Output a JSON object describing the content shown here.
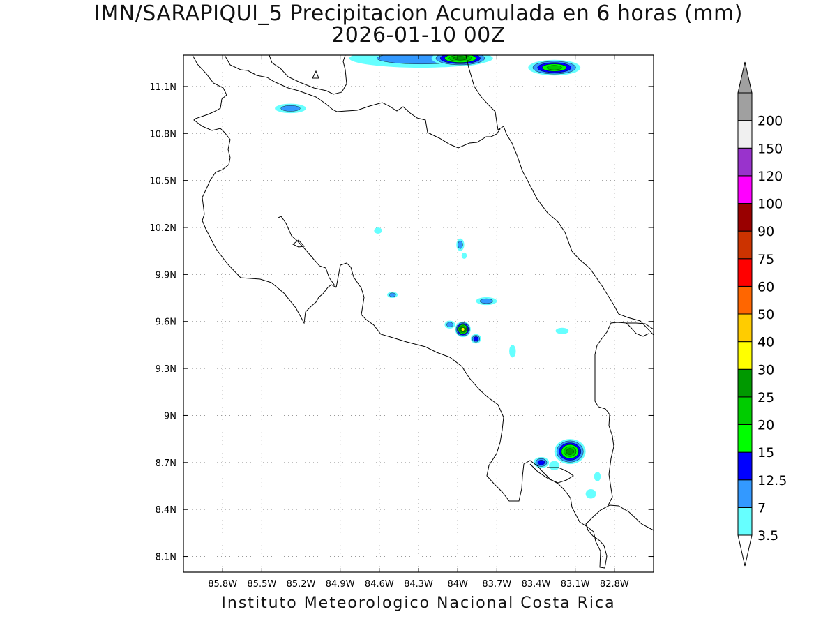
{
  "title": {
    "line1": "IMN/SARAPIQUI_5 Precipitacion Acumulada en 6 horas (mm)",
    "line2": "2026-01-10 00Z"
  },
  "footer": "Instituto Meteorologico Nacional Costa Rica",
  "map": {
    "lon_range": [
      -86.1,
      -82.5
    ],
    "lat_range": [
      8.0,
      11.3
    ],
    "lon_ticks": [
      {
        "value": -85.8,
        "label": "85.8W"
      },
      {
        "value": -85.5,
        "label": "85.5W"
      },
      {
        "value": -85.2,
        "label": "85.2W"
      },
      {
        "value": -84.9,
        "label": "84.9W"
      },
      {
        "value": -84.6,
        "label": "84.6W"
      },
      {
        "value": -84.3,
        "label": "84.3W"
      },
      {
        "value": -84.0,
        "label": "84W"
      },
      {
        "value": -83.7,
        "label": "83.7W"
      },
      {
        "value": -83.4,
        "label": "83.4W"
      },
      {
        "value": -83.1,
        "label": "83.1W"
      },
      {
        "value": -82.8,
        "label": "82.8W"
      }
    ],
    "lat_ticks": [
      {
        "value": 11.1,
        "label": "11.1N"
      },
      {
        "value": 10.8,
        "label": "10.8N"
      },
      {
        "value": 10.5,
        "label": "10.5N"
      },
      {
        "value": 10.2,
        "label": "10.2N"
      },
      {
        "value": 9.9,
        "label": "9.9N"
      },
      {
        "value": 9.6,
        "label": "9.6N"
      },
      {
        "value": 9.3,
        "label": "9.3N"
      },
      {
        "value": 9.0,
        "label": "9N"
      },
      {
        "value": 8.7,
        "label": "8.7N"
      },
      {
        "value": 8.4,
        "label": "8.4N"
      },
      {
        "value": 8.1,
        "label": "8.1N"
      }
    ],
    "grid": true
  },
  "colorbar": {
    "levels": [
      {
        "label": "3.5",
        "color": "#66ffff"
      },
      {
        "label": "7",
        "color": "#3399ff"
      },
      {
        "label": "12.5",
        "color": "#0000ff"
      },
      {
        "label": "15",
        "color": "#00ff00"
      },
      {
        "label": "20",
        "color": "#00cc00"
      },
      {
        "label": "25",
        "color": "#009900"
      },
      {
        "label": "30",
        "color": "#ffff00"
      },
      {
        "label": "40",
        "color": "#ffcc00"
      },
      {
        "label": "50",
        "color": "#ff6600"
      },
      {
        "label": "60",
        "color": "#ff0000"
      },
      {
        "label": "75",
        "color": "#cc3300"
      },
      {
        "label": "90",
        "color": "#990000"
      },
      {
        "label": "100",
        "color": "#ff00ff"
      },
      {
        "label": "120",
        "color": "#9933cc"
      },
      {
        "label": "150",
        "color": "#f0f0f0"
      },
      {
        "label": "200",
        "color": "#a0a0a0"
      }
    ],
    "under_color": "#ffffff",
    "over_color": "#a0a0a0"
  },
  "precip_cells": [
    {
      "lon": -84.28,
      "lat": 11.28,
      "rx": 0.55,
      "ry": 0.06,
      "max_level": 1
    },
    {
      "lon": -83.98,
      "lat": 11.28,
      "rx": 0.22,
      "ry": 0.05,
      "max_level": 5
    },
    {
      "lon": -83.26,
      "lat": 11.22,
      "rx": 0.2,
      "ry": 0.05,
      "max_level": 4
    },
    {
      "lon": -85.28,
      "lat": 10.96,
      "rx": 0.12,
      "ry": 0.03,
      "max_level": 1
    },
    {
      "lon": -84.61,
      "lat": 10.18,
      "rx": 0.03,
      "ry": 0.02,
      "max_level": 0
    },
    {
      "lon": -83.98,
      "lat": 10.09,
      "rx": 0.03,
      "ry": 0.04,
      "max_level": 1
    },
    {
      "lon": -83.95,
      "lat": 10.02,
      "rx": 0.02,
      "ry": 0.02,
      "max_level": 0
    },
    {
      "lon": -84.5,
      "lat": 9.77,
      "rx": 0.04,
      "ry": 0.02,
      "max_level": 1
    },
    {
      "lon": -83.78,
      "lat": 9.73,
      "rx": 0.08,
      "ry": 0.025,
      "max_level": 1
    },
    {
      "lon": -83.96,
      "lat": 9.55,
      "rx": 0.06,
      "ry": 0.05,
      "max_level": 6
    },
    {
      "lon": -84.06,
      "lat": 9.58,
      "rx": 0.04,
      "ry": 0.025,
      "max_level": 1
    },
    {
      "lon": -83.86,
      "lat": 9.49,
      "rx": 0.04,
      "ry": 0.03,
      "max_level": 2
    },
    {
      "lon": -83.58,
      "lat": 9.41,
      "rx": 0.025,
      "ry": 0.04,
      "max_level": 0
    },
    {
      "lon": -83.2,
      "lat": 9.54,
      "rx": 0.05,
      "ry": 0.02,
      "max_level": 0
    },
    {
      "lon": -83.14,
      "lat": 8.77,
      "rx": 0.12,
      "ry": 0.08,
      "max_level": 5
    },
    {
      "lon": -83.36,
      "lat": 8.7,
      "rx": 0.06,
      "ry": 0.035,
      "max_level": 2
    },
    {
      "lon": -83.26,
      "lat": 8.68,
      "rx": 0.04,
      "ry": 0.03,
      "max_level": 0
    },
    {
      "lon": -82.98,
      "lat": 8.5,
      "rx": 0.04,
      "ry": 0.03,
      "max_level": 0
    },
    {
      "lon": -82.93,
      "lat": 8.61,
      "rx": 0.025,
      "ry": 0.03,
      "max_level": 0
    }
  ]
}
